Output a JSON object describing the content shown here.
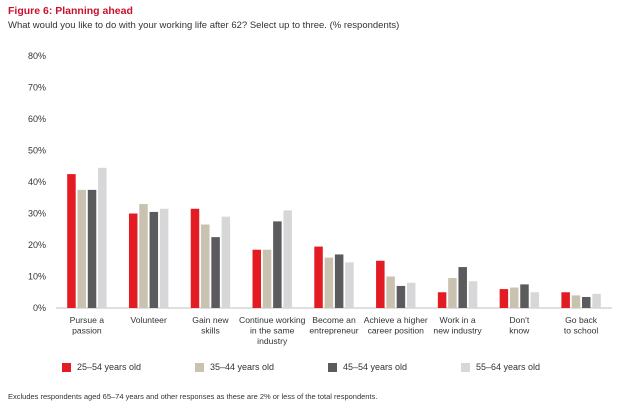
{
  "header": {
    "title": "Figure 6: Planning ahead",
    "subtitle": "What would you like to do with your working life after 62? Select up to three. (% respondents)"
  },
  "footnote": "Excludes respondents aged 65–74 years and other responses as these are 2% or less of the total respondents.",
  "chart_data": {
    "type": "bar",
    "ylim": [
      0,
      80
    ],
    "yticks": [
      0,
      10,
      20,
      30,
      40,
      50,
      60,
      70,
      80
    ],
    "ytick_labels": [
      "0%",
      "10%",
      "20%",
      "30%",
      "40%",
      "50%",
      "60%",
      "70%",
      "80%"
    ],
    "grid": false,
    "legend_position": "bottom",
    "categories": [
      [
        "Pursue a",
        "passion"
      ],
      [
        "Volunteer"
      ],
      [
        "Gain new",
        "skills"
      ],
      [
        "Continue working",
        "in the same",
        "industry"
      ],
      [
        "Become an",
        "entrepreneur"
      ],
      [
        "Achieve a higher",
        "career position"
      ],
      [
        "Work in a",
        "new industry"
      ],
      [
        "Don't",
        "know"
      ],
      [
        "Go back",
        "to school"
      ]
    ],
    "series": [
      {
        "name": "25–54 years old",
        "color": "#e31b23",
        "values": [
          42.5,
          30,
          31.5,
          18.5,
          19.5,
          15,
          5,
          6,
          5
        ]
      },
      {
        "name": "35–44 years old",
        "color": "#c9c2b1",
        "values": [
          37.5,
          33,
          26.5,
          18.5,
          16,
          10,
          9.5,
          6.5,
          4
        ]
      },
      {
        "name": "45–54 years old",
        "color": "#5b5b5e",
        "values": [
          37.5,
          30.5,
          22.5,
          27.5,
          17,
          7,
          13,
          7.5,
          3.5
        ]
      },
      {
        "name": "55–64 years old",
        "color": "#d7d7d9",
        "values": [
          44.5,
          31.5,
          29,
          31,
          14.5,
          8,
          8.5,
          5,
          4.5
        ]
      }
    ]
  }
}
